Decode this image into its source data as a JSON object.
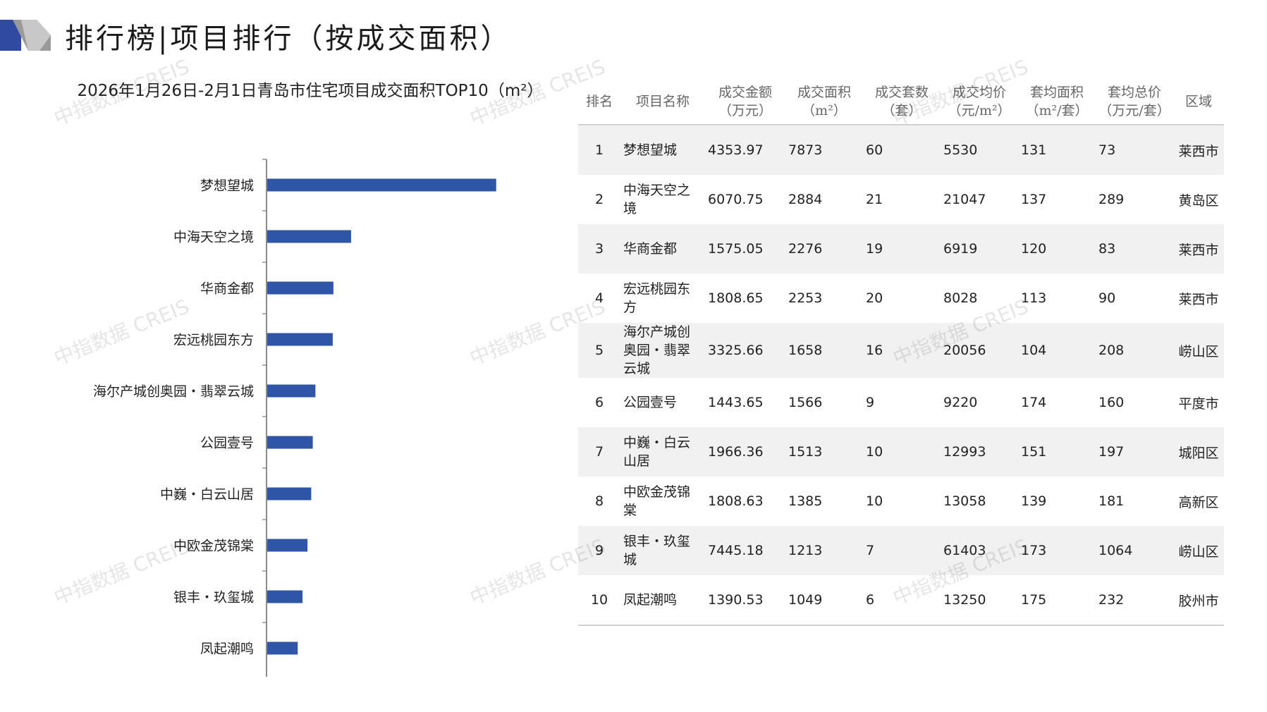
{
  "header": {
    "title": "排行榜|项目排行（按成交面积）"
  },
  "watermark_text": "中指数据 CREIS",
  "chart_data": {
    "type": "bar",
    "orientation": "horizontal",
    "title": "2026年1月26日-2月1日青岛市住宅项目成交面积TOP10（m²）",
    "categories": [
      "梦想望城",
      "中海天空之境",
      "华商金都",
      "宏远桃园东方",
      "海尔产城创奥园・翡翠云城",
      "公园壹号",
      "中巍・白云山居",
      "中欧金茂锦棠",
      "银丰・玖玺城",
      "凤起潮鸣"
    ],
    "values": [
      7873,
      2884,
      2276,
      2253,
      1658,
      1566,
      1513,
      1385,
      1213,
      1049
    ],
    "xlim": [
      0,
      8000
    ],
    "color": "#2f56a6",
    "grid": false,
    "legend": "none"
  },
  "table": {
    "headers": [
      {
        "line1": "排名",
        "line2": ""
      },
      {
        "line1": "项目名称",
        "line2": ""
      },
      {
        "line1": "成交金额",
        "line2": "（万元）"
      },
      {
        "line1": "成交面积",
        "line2": "（m²）"
      },
      {
        "line1": "成交套数",
        "line2": "（套）"
      },
      {
        "line1": "成交均价",
        "line2": "（元/m²）"
      },
      {
        "line1": "套均面积",
        "line2": "（m²/套）"
      },
      {
        "line1": "套均总价",
        "line2": "（万元/套）"
      },
      {
        "line1": "区域",
        "line2": ""
      }
    ],
    "rows": [
      {
        "rank": "1",
        "name": "梦想望城",
        "amount": "4353.97",
        "area": "7873",
        "units": "60",
        "price": "5530",
        "avg_area": "131",
        "avg_total": "73",
        "region": "莱西市"
      },
      {
        "rank": "2",
        "name": "中海天空之境",
        "amount": "6070.75",
        "area": "2884",
        "units": "21",
        "price": "21047",
        "avg_area": "137",
        "avg_total": "289",
        "region": "黄岛区"
      },
      {
        "rank": "3",
        "name": "华商金都",
        "amount": "1575.05",
        "area": "2276",
        "units": "19",
        "price": "6919",
        "avg_area": "120",
        "avg_total": "83",
        "region": "莱西市"
      },
      {
        "rank": "4",
        "name": "宏远桃园东方",
        "amount": "1808.65",
        "area": "2253",
        "units": "20",
        "price": "8028",
        "avg_area": "113",
        "avg_total": "90",
        "region": "莱西市"
      },
      {
        "rank": "5",
        "name": "海尔产城创奥园・翡翠云城",
        "amount": "3325.66",
        "area": "1658",
        "units": "16",
        "price": "20056",
        "avg_area": "104",
        "avg_total": "208",
        "region": "崂山区"
      },
      {
        "rank": "6",
        "name": "公园壹号",
        "amount": "1443.65",
        "area": "1566",
        "units": "9",
        "price": "9220",
        "avg_area": "174",
        "avg_total": "160",
        "region": "平度市"
      },
      {
        "rank": "7",
        "name": "中巍・白云山居",
        "amount": "1966.36",
        "area": "1513",
        "units": "10",
        "price": "12993",
        "avg_area": "151",
        "avg_total": "197",
        "region": "城阳区"
      },
      {
        "rank": "8",
        "name": "中欧金茂锦棠",
        "amount": "1808.63",
        "area": "1385",
        "units": "10",
        "price": "13058",
        "avg_area": "139",
        "avg_total": "181",
        "region": "高新区"
      },
      {
        "rank": "9",
        "name": "银丰・玖玺城",
        "amount": "7445.18",
        "area": "1213",
        "units": "7",
        "price": "61403",
        "avg_area": "173",
        "avg_total": "1064",
        "region": "崂山区"
      },
      {
        "rank": "10",
        "name": "凤起潮鸣",
        "amount": "1390.53",
        "area": "1049",
        "units": "6",
        "price": "13250",
        "avg_area": "175",
        "avg_total": "232",
        "region": "胶州市"
      }
    ]
  }
}
